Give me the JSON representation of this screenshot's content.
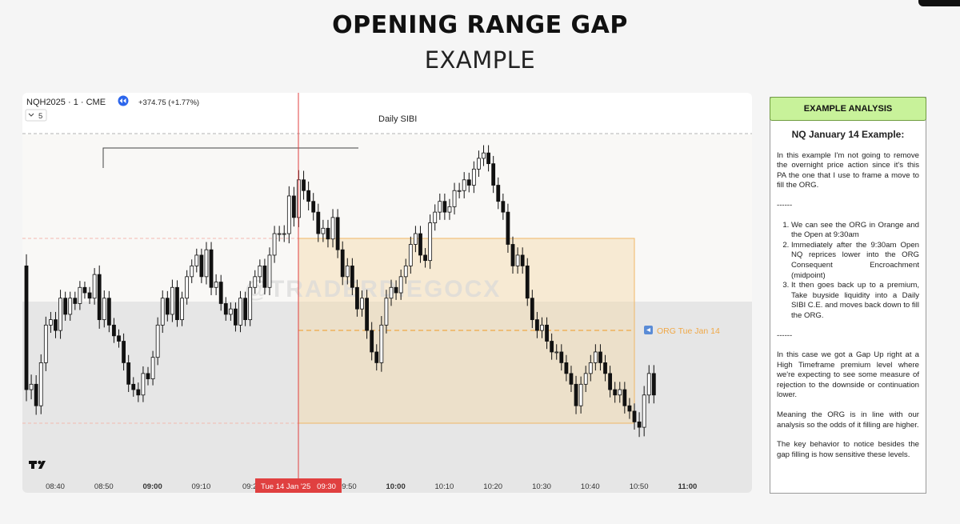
{
  "page": {
    "title": "OPENING RANGE GAP",
    "subtitle": "EXAMPLE"
  },
  "chart": {
    "symbol_line": "NQH2025 · 1 · CME",
    "change": "+374.75 (+1.77%)",
    "collapse_label": "5",
    "watermark": "@TRADERDIEGOCX",
    "daily_sibi_label": "Daily SIBI",
    "org_label": "ORG Tue Jan 14",
    "crosshair_label": "Tue 14 Jan '25   09:30",
    "colors": {
      "org_fill": "#f3d9a8",
      "org_line": "#f0a847",
      "premium_zone": "#e6e6e6",
      "upper_zone": "#f9f8f6",
      "crosshair": "#e04040",
      "candle": "#111111"
    }
  },
  "chart_data": {
    "type": "candlestick",
    "x_ticks": [
      {
        "label": "08:40",
        "bold": false
      },
      {
        "label": "08:50",
        "bold": false
      },
      {
        "label": "09:00",
        "bold": true
      },
      {
        "label": "09:10",
        "bold": false
      },
      {
        "label": "09:2",
        "bold": false
      },
      {
        "label": "09:40",
        "bold": false
      },
      {
        "label": "09:50",
        "bold": false
      },
      {
        "label": "10:00",
        "bold": true
      },
      {
        "label": "10:10",
        "bold": false
      },
      {
        "label": "10:20",
        "bold": false
      },
      {
        "label": "10:30",
        "bold": false
      },
      {
        "label": "10:40",
        "bold": false
      },
      {
        "label": "10:50",
        "bold": false
      },
      {
        "label": "11:00",
        "bold": true
      }
    ],
    "closes": [
      215,
      220,
      200,
      240,
      275,
      280,
      270,
      300,
      285,
      300,
      295,
      310,
      305,
      300,
      322,
      280,
      300,
      275,
      265,
      260,
      240,
      220,
      215,
      210,
      230,
      225,
      245,
      275,
      300,
      285,
      310,
      280,
      300,
      320,
      330,
      340,
      320,
      345,
      310,
      315,
      295,
      285,
      290,
      275,
      300,
      280,
      310,
      320,
      330,
      310,
      340,
      360,
      360,
      360,
      395,
      375,
      410,
      400,
      390,
      380,
      360,
      365,
      355,
      375,
      345,
      320,
      330,
      310,
      290,
      300,
      270,
      250,
      240,
      275,
      300,
      310,
      305,
      320,
      330,
      350,
      360,
      340,
      335,
      370,
      380,
      390,
      380,
      385,
      400,
      400,
      410,
      405,
      420,
      430,
      435,
      425,
      405,
      390,
      380,
      350,
      330,
      340,
      330,
      300,
      280,
      270,
      275,
      260,
      250,
      250,
      240,
      230,
      220,
      200,
      220,
      230,
      240,
      250,
      240,
      230,
      215,
      210,
      215,
      200,
      195,
      185,
      180,
      210,
      230,
      210
    ],
    "volatility": [
      18,
      15,
      14,
      13,
      13,
      12,
      12,
      13,
      10,
      10,
      10,
      10,
      9,
      9,
      10,
      14,
      12,
      11,
      11,
      10,
      12,
      12,
      11,
      11,
      11,
      10,
      10,
      12,
      12,
      11,
      12,
      11,
      10,
      10,
      10,
      10,
      10,
      12,
      12,
      12,
      11,
      10,
      10,
      10,
      11,
      10,
      10,
      10,
      10,
      11,
      12,
      12,
      12,
      13,
      15,
      14,
      15,
      14,
      14,
      13,
      13,
      13,
      13,
      13,
      13,
      13,
      12,
      12,
      12,
      12,
      13,
      13,
      12,
      14,
      13,
      12,
      11,
      11,
      11,
      12,
      12,
      12,
      11,
      13,
      12,
      12,
      12,
      12,
      12,
      12,
      12,
      11,
      12,
      12,
      12,
      12,
      12,
      12,
      12,
      13,
      12,
      12,
      12,
      12,
      13,
      12,
      12,
      12,
      12,
      12,
      12,
      12,
      12,
      13,
      12,
      12,
      12,
      12,
      12,
      12,
      12,
      12,
      12,
      12,
      12,
      12,
      15,
      14,
      13,
      13
    ]
  },
  "panel": {
    "header": "EXAMPLE ANALYSIS",
    "subtitle": "NQ January 14 Example:",
    "para1": "In this example I'm not going to remove the overnight price action since it's this PA the one that I use to frame a move to fill the ORG.",
    "sep1": "------",
    "list": [
      "We can see the ORG in Orange and the Open at 9:30am",
      "Immediately after the 9:30am Open NQ reprices lower into the ORG Consequent Encroachment (midpoint)",
      "It then goes back up to a premium, Take buyside liquidity into a Daily SIBI C.E. and moves back down to fill the ORG."
    ],
    "sep2": "------",
    "para2": "In this case we got a Gap Up right at a High Timeframe premium level where we're expecting to see some measure of rejection to the downside or continuation lower.",
    "para3": "Meaning the ORG is in line with our analysis so the odds of it filling are higher.",
    "para4": "The key behavior to notice besides the gap filling is how sensitive these levels."
  }
}
